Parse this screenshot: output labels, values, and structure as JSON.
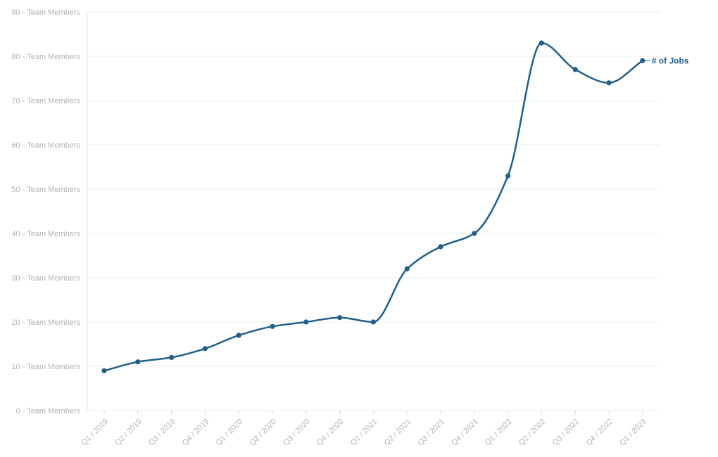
{
  "colors": {
    "series": "#1f5f8b",
    "grid": "#ececec",
    "axis": "#dcdcdc",
    "tick_text": "#b3b3b3"
  },
  "chart_data": {
    "type": "line",
    "title": "",
    "xlabel": "",
    "ylabel": "",
    "ylim": [
      0,
      90
    ],
    "y_ticks": [
      {
        "value": 0,
        "label": "0 - Team Members"
      },
      {
        "value": 10,
        "label": "10 - Team Members"
      },
      {
        "value": 20,
        "label": "20 - Team Members"
      },
      {
        "value": 30,
        "label": "30 - Team Members"
      },
      {
        "value": 40,
        "label": "40 - Team Members"
      },
      {
        "value": 50,
        "label": "50 - Team Members"
      },
      {
        "value": 60,
        "label": "60 - Team Members"
      },
      {
        "value": 70,
        "label": "70 - Team Members"
      },
      {
        "value": 80,
        "label": "80 - Team Members"
      },
      {
        "value": 90,
        "label": "90 - Team Members"
      }
    ],
    "categories": [
      "Q1 / 2019",
      "Q2 / 2019",
      "Q3 / 2019",
      "Q4 / 2019",
      "Q1 / 2020",
      "Q2 / 2020",
      "Q3 / 2020",
      "Q4 / 2020",
      "Q1 / 2021",
      "Q2 / 2021",
      "Q3 / 2021",
      "Q4 / 2021",
      "Q1 / 2022",
      "Q2 / 2022",
      "Q3 / 2022",
      "Q4 / 2022",
      "Q1 / 2023"
    ],
    "series": [
      {
        "name": "# of Jobs",
        "values": [
          9,
          11,
          12,
          14,
          17,
          19,
          20,
          21,
          20,
          32,
          37,
          40,
          53,
          83,
          77,
          74,
          79
        ]
      }
    ],
    "grid": true,
    "legend": "inline label at end of line"
  }
}
